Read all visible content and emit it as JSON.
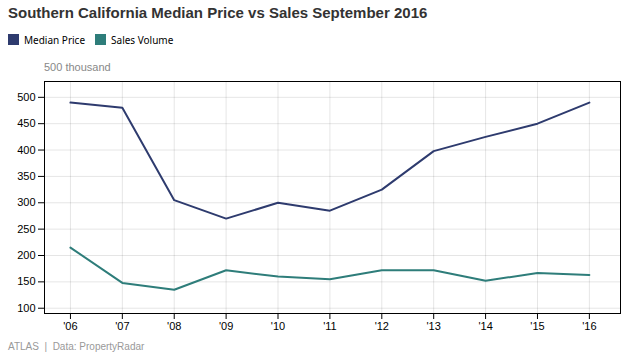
{
  "chart_data": {
    "type": "line",
    "title": "Southern California Median Price vs Sales September 2016",
    "x": [
      2006,
      2007,
      2008,
      2009,
      2010,
      2011,
      2012,
      2013,
      2014,
      2015,
      2016
    ],
    "series": [
      {
        "name": "Median Price",
        "color": "#2e3b6e",
        "values": [
          490,
          480,
          305,
          270,
          300,
          285,
          325,
          398,
          425,
          450,
          490
        ]
      },
      {
        "name": "Sales Volume",
        "color": "#2e7d7a",
        "values": [
          215,
          148,
          135,
          172,
          160,
          155,
          172,
          172,
          152,
          167,
          163
        ]
      }
    ],
    "xlim": [
      2005.5,
      2016.6
    ],
    "xticks": [
      {
        "value": 2006,
        "label": "'06"
      },
      {
        "value": 2007,
        "label": "'07"
      },
      {
        "value": 2008,
        "label": "'08"
      },
      {
        "value": 2009,
        "label": "'09"
      },
      {
        "value": 2010,
        "label": "'10"
      },
      {
        "value": 2011,
        "label": "'11"
      },
      {
        "value": 2012,
        "label": "'12"
      },
      {
        "value": 2013,
        "label": "'13"
      },
      {
        "value": 2014,
        "label": "'14"
      },
      {
        "value": 2015,
        "label": "'15"
      },
      {
        "value": 2016,
        "label": "'16"
      }
    ],
    "ylim": [
      90,
      530
    ],
    "yticks": [
      100,
      150,
      200,
      250,
      300,
      350,
      400,
      450,
      500
    ],
    "grid": true,
    "legend": "top",
    "annotations": [
      "500 thousand",
      "ATLAS",
      "|  Data: PropertyRadar"
    ]
  }
}
